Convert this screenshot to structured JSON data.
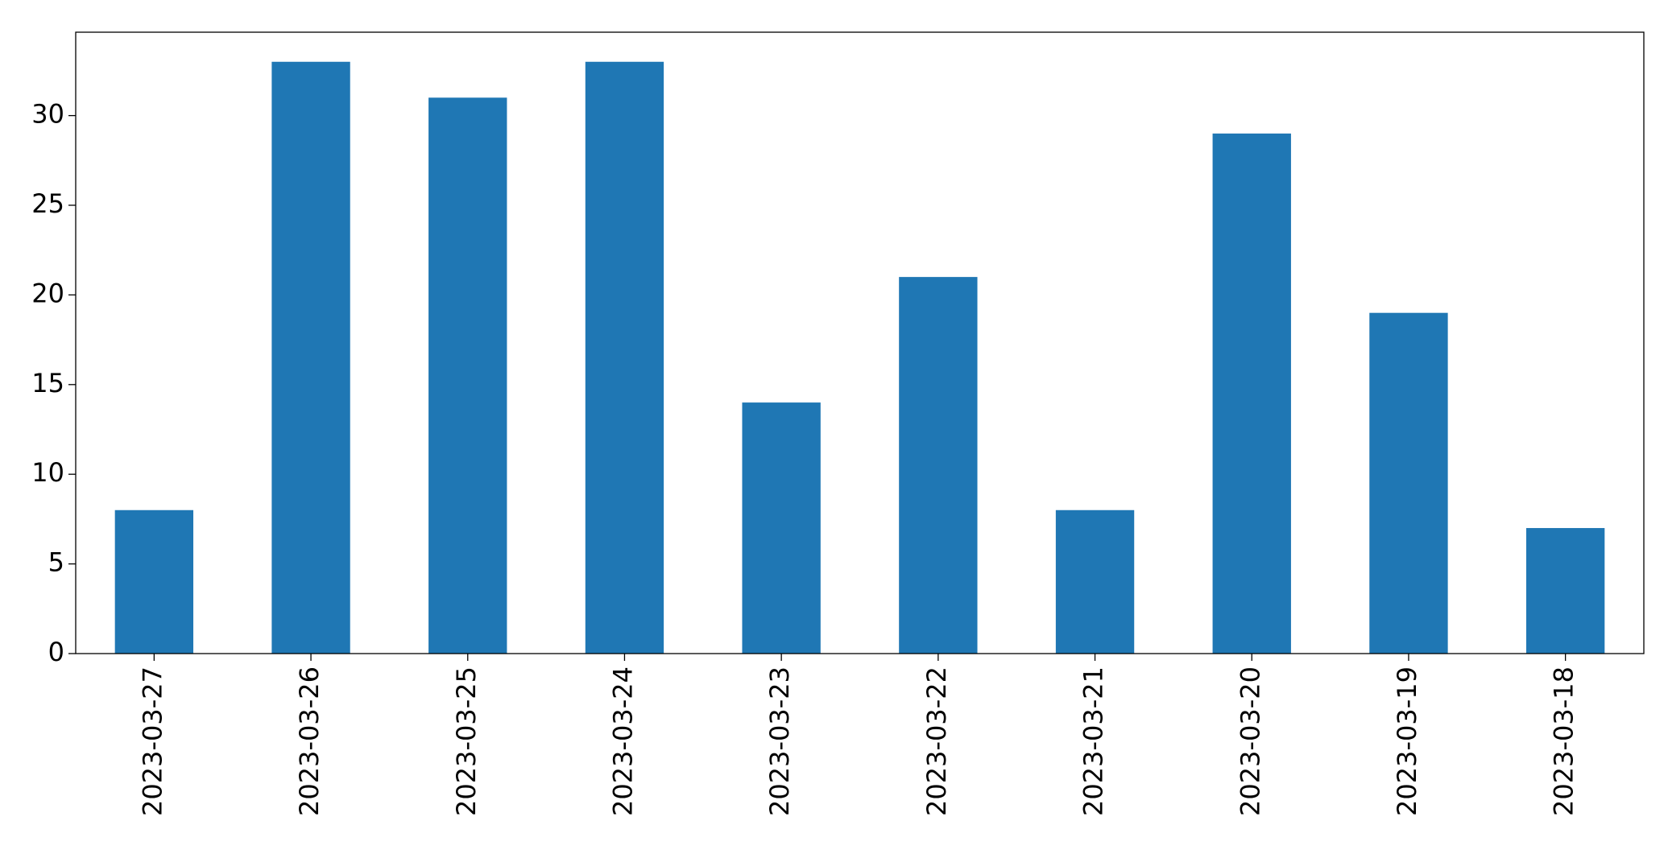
{
  "chart_data": {
    "type": "bar",
    "categories": [
      "2023-03-27",
      "2023-03-26",
      "2023-03-25",
      "2023-03-24",
      "2023-03-23",
      "2023-03-22",
      "2023-03-21",
      "2023-03-20",
      "2023-03-19",
      "2023-03-18"
    ],
    "values": [
      8,
      33,
      31,
      33,
      14,
      21,
      8,
      29,
      19,
      7
    ],
    "color": "#1f77b4",
    "ylim": [
      0,
      34.65
    ],
    "yticks": [
      0,
      5,
      10,
      15,
      20,
      25,
      30
    ],
    "grid": false
  }
}
